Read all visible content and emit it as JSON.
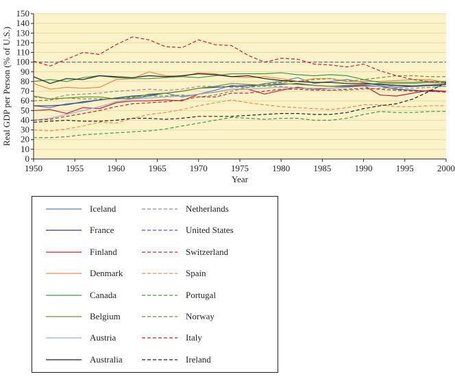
{
  "chart_data": {
    "type": "line",
    "title": "",
    "xlabel": "Year",
    "ylabel": "Real GDP per Person (% of U.S.)",
    "xlim": [
      1950,
      2000
    ],
    "ylim": [
      0,
      150
    ],
    "x_ticks": [
      1950,
      1955,
      1960,
      1965,
      1970,
      1975,
      1980,
      1985,
      1990,
      1995,
      2000
    ],
    "y_ticks": [
      0,
      10,
      20,
      30,
      40,
      50,
      60,
      70,
      80,
      90,
      100,
      110,
      120,
      130,
      140,
      150
    ],
    "plot_background": "#fbf2c8",
    "grid": "horizontal",
    "legend_position": "below",
    "years": [
      1950,
      1952,
      1954,
      1956,
      1958,
      1960,
      1962,
      1964,
      1966,
      1968,
      1970,
      1972,
      1974,
      1976,
      1978,
      1980,
      1982,
      1984,
      1986,
      1988,
      1990,
      1992,
      1994,
      1996,
      1998,
      2000
    ],
    "series": [
      {
        "name": "Iceland",
        "color": "#5a7fc0",
        "dash": "solid",
        "values": [
          55,
          53,
          57,
          58,
          61,
          63,
          62,
          65,
          68,
          64,
          67,
          71,
          76,
          74,
          78,
          80,
          84,
          78,
          80,
          82,
          79,
          76,
          74,
          75,
          76,
          75
        ]
      },
      {
        "name": "France",
        "color": "#2f3f8f",
        "dash": "solid",
        "values": [
          55,
          55,
          56,
          59,
          61,
          63,
          65,
          66,
          68,
          70,
          73,
          74,
          75,
          76,
          76,
          77,
          78,
          76,
          75,
          75,
          76,
          75,
          72,
          71,
          70,
          70
        ]
      },
      {
        "name": "Finland",
        "color": "#c8202f",
        "dash": "solid",
        "values": [
          50,
          51,
          47,
          53,
          52,
          58,
          60,
          60,
          61,
          60,
          67,
          69,
          72,
          72,
          67,
          71,
          74,
          72,
          73,
          74,
          76,
          66,
          65,
          68,
          71,
          70
        ]
      },
      {
        "name": "Denmark",
        "color": "#f08a4b",
        "dash": "solid",
        "values": [
          78,
          72,
          74,
          73,
          74,
          82,
          83,
          90,
          86,
          85,
          89,
          88,
          85,
          84,
          85,
          83,
          80,
          83,
          83,
          80,
          80,
          80,
          81,
          82,
          82,
          79
        ]
      },
      {
        "name": "Canada",
        "color": "#3c9a4f",
        "dash": "solid",
        "values": [
          80,
          82,
          80,
          84,
          86,
          84,
          83,
          83,
          84,
          85,
          84,
          86,
          88,
          88,
          88,
          89,
          87,
          86,
          87,
          86,
          82,
          79,
          79,
          79,
          80,
          80
        ]
      },
      {
        "name": "Belgium",
        "color": "#6f8f2a",
        "dash": "solid",
        "values": [
          65,
          62,
          63,
          64,
          64,
          62,
          63,
          67,
          68,
          70,
          73,
          75,
          78,
          77,
          76,
          78,
          77,
          76,
          75,
          76,
          77,
          78,
          78,
          78,
          79,
          78
        ]
      },
      {
        "name": "Austria",
        "color": "#8fb0da",
        "dash": "solid",
        "values": [
          40,
          42,
          46,
          50,
          54,
          59,
          62,
          63,
          64,
          65,
          67,
          69,
          72,
          72,
          73,
          74,
          73,
          73,
          73,
          74,
          75,
          75,
          76,
          76,
          77,
          77
        ]
      },
      {
        "name": "Australia",
        "color": "#231f20",
        "dash": "solid",
        "values": [
          85,
          78,
          83,
          82,
          86,
          85,
          84,
          86,
          85,
          86,
          88,
          87,
          85,
          86,
          83,
          81,
          80,
          79,
          79,
          78,
          78,
          77,
          76,
          75,
          76,
          77
        ]
      },
      {
        "name": "Netherlands",
        "color": "#8a8f98",
        "dash": "dashed",
        "values": [
          64,
          62,
          66,
          67,
          68,
          70,
          71,
          72,
          71,
          72,
          75,
          75,
          74,
          74,
          75,
          75,
          73,
          72,
          71,
          71,
          72,
          73,
          73,
          73,
          74,
          75
        ]
      },
      {
        "name": "United States",
        "color": "#4a5bb5",
        "dash": "dashed",
        "values": [
          100,
          100,
          100,
          100,
          100,
          100,
          100,
          100,
          100,
          100,
          100,
          100,
          100,
          100,
          100,
          100,
          100,
          100,
          100,
          100,
          100,
          100,
          100,
          100,
          100,
          100
        ]
      },
      {
        "name": "Switzerland",
        "color": "#c8202f",
        "dash": "dashed",
        "values": [
          101,
          96,
          103,
          110,
          108,
          118,
          126,
          123,
          116,
          115,
          123,
          118,
          117,
          107,
          100,
          104,
          103,
          98,
          97,
          95,
          98,
          91,
          86,
          82,
          80,
          79
        ]
      },
      {
        "name": "Spain",
        "color": "#f08a4b",
        "dash": "dashed",
        "values": [
          30,
          29,
          31,
          34,
          38,
          37,
          42,
          46,
          48,
          51,
          55,
          58,
          61,
          58,
          56,
          54,
          53,
          52,
          51,
          53,
          56,
          56,
          54,
          54,
          55,
          55
        ]
      },
      {
        "name": "Portugal",
        "color": "#3c9a4f",
        "dash": "dashed",
        "values": [
          22,
          22,
          23,
          25,
          26,
          27,
          28,
          29,
          31,
          34,
          37,
          40,
          43,
          42,
          41,
          42,
          42,
          40,
          40,
          42,
          46,
          49,
          48,
          48,
          49,
          49
        ]
      },
      {
        "name": "Norway",
        "color": "#6f8f2a",
        "dash": "dashed",
        "values": [
          60,
          61,
          63,
          62,
          62,
          62,
          64,
          65,
          65,
          66,
          64,
          66,
          70,
          74,
          77,
          79,
          80,
          82,
          83,
          80,
          82,
          84,
          86,
          86,
          85,
          85
        ]
      },
      {
        "name": "Italy",
        "color": "#c8202f",
        "dash": "dashed",
        "values": [
          40,
          41,
          44,
          47,
          50,
          54,
          57,
          58,
          59,
          61,
          64,
          64,
          68,
          68,
          70,
          72,
          72,
          71,
          71,
          72,
          73,
          72,
          71,
          70,
          70,
          69
        ]
      },
      {
        "name": "Ireland",
        "color": "#231f20",
        "dash": "dashed",
        "values": [
          38,
          39,
          40,
          39,
          39,
          40,
          42,
          42,
          41,
          42,
          44,
          44,
          44,
          45,
          46,
          47,
          47,
          46,
          46,
          48,
          52,
          55,
          57,
          62,
          70,
          79
        ]
      }
    ]
  }
}
